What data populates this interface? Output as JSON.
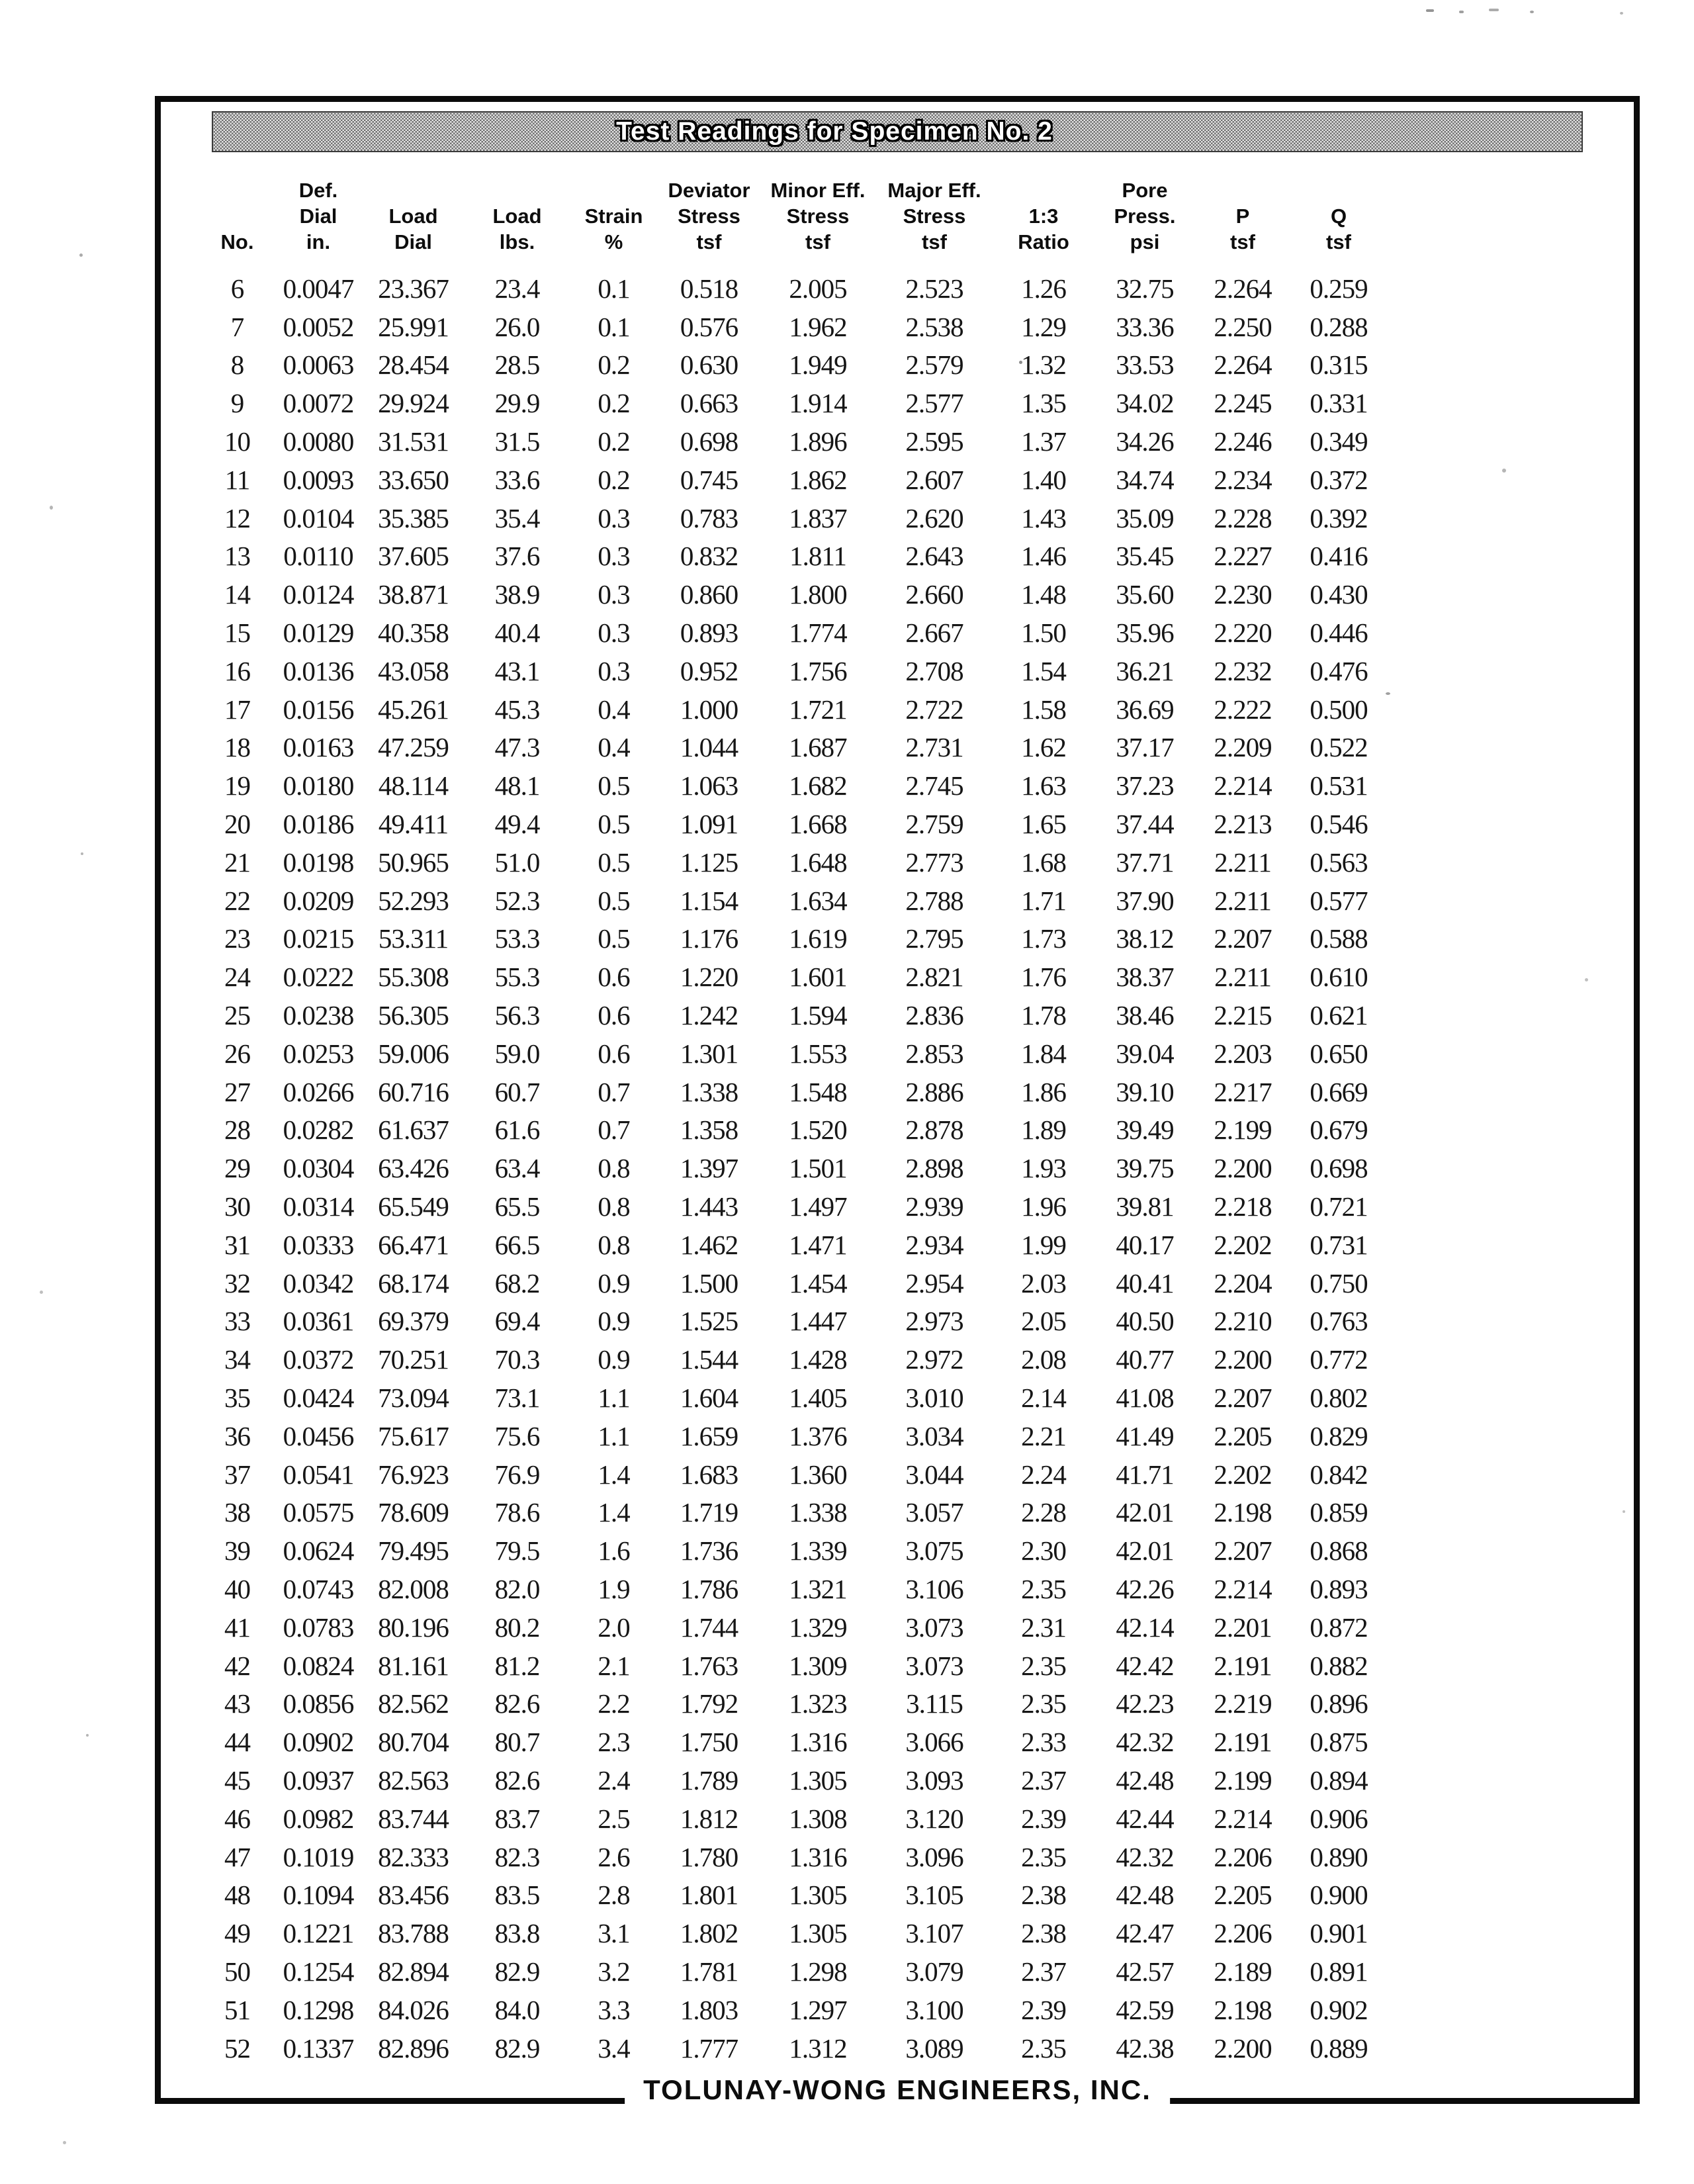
{
  "page": {
    "title": "Test Readings for Specimen No. 2",
    "footer": "TOLUNAY-WONG ENGINEERS, INC."
  },
  "colors": {
    "ink": "#141414",
    "frame_border": "#0b0b0b",
    "title_band_dark": "#6f6f6f",
    "title_band_light": "#e4e4e4",
    "title_text": "#ffffff"
  },
  "table": {
    "columns": [
      [
        "",
        "",
        "No."
      ],
      [
        "Def.",
        "Dial",
        "in."
      ],
      [
        "",
        "Load",
        "Dial"
      ],
      [
        "",
        "Load",
        "lbs."
      ],
      [
        "",
        "Strain",
        "%"
      ],
      [
        "Deviator",
        "Stress",
        "tsf"
      ],
      [
        "Minor Eff.",
        "Stress",
        "tsf"
      ],
      [
        "Major Eff.",
        "Stress",
        "tsf"
      ],
      [
        "",
        "1:3",
        "Ratio"
      ],
      [
        "Pore",
        "Press.",
        "psi"
      ],
      [
        "",
        "P",
        "tsf"
      ],
      [
        "",
        "Q",
        "tsf"
      ]
    ],
    "rows": [
      [
        "6",
        "0.0047",
        "23.367",
        "23.4",
        "0.1",
        "0.518",
        "2.005",
        "2.523",
        "1.26",
        "32.75",
        "2.264",
        "0.259"
      ],
      [
        "7",
        "0.0052",
        "25.991",
        "26.0",
        "0.1",
        "0.576",
        "1.962",
        "2.538",
        "1.29",
        "33.36",
        "2.250",
        "0.288"
      ],
      [
        "8",
        "0.0063",
        "28.454",
        "28.5",
        "0.2",
        "0.630",
        "1.949",
        "2.579",
        "1.32",
        "33.53",
        "2.264",
        "0.315"
      ],
      [
        "9",
        "0.0072",
        "29.924",
        "29.9",
        "0.2",
        "0.663",
        "1.914",
        "2.577",
        "1.35",
        "34.02",
        "2.245",
        "0.331"
      ],
      [
        "10",
        "0.0080",
        "31.531",
        "31.5",
        "0.2",
        "0.698",
        "1.896",
        "2.595",
        "1.37",
        "34.26",
        "2.246",
        "0.349"
      ],
      [
        "11",
        "0.0093",
        "33.650",
        "33.6",
        "0.2",
        "0.745",
        "1.862",
        "2.607",
        "1.40",
        "34.74",
        "2.234",
        "0.372"
      ],
      [
        "12",
        "0.0104",
        "35.385",
        "35.4",
        "0.3",
        "0.783",
        "1.837",
        "2.620",
        "1.43",
        "35.09",
        "2.228",
        "0.392"
      ],
      [
        "13",
        "0.0110",
        "37.605",
        "37.6",
        "0.3",
        "0.832",
        "1.811",
        "2.643",
        "1.46",
        "35.45",
        "2.227",
        "0.416"
      ],
      [
        "14",
        "0.0124",
        "38.871",
        "38.9",
        "0.3",
        "0.860",
        "1.800",
        "2.660",
        "1.48",
        "35.60",
        "2.230",
        "0.430"
      ],
      [
        "15",
        "0.0129",
        "40.358",
        "40.4",
        "0.3",
        "0.893",
        "1.774",
        "2.667",
        "1.50",
        "35.96",
        "2.220",
        "0.446"
      ],
      [
        "16",
        "0.0136",
        "43.058",
        "43.1",
        "0.3",
        "0.952",
        "1.756",
        "2.708",
        "1.54",
        "36.21",
        "2.232",
        "0.476"
      ],
      [
        "17",
        "0.0156",
        "45.261",
        "45.3",
        "0.4",
        "1.000",
        "1.721",
        "2.722",
        "1.58",
        "36.69",
        "2.222",
        "0.500"
      ],
      [
        "18",
        "0.0163",
        "47.259",
        "47.3",
        "0.4",
        "1.044",
        "1.687",
        "2.731",
        "1.62",
        "37.17",
        "2.209",
        "0.522"
      ],
      [
        "19",
        "0.0180",
        "48.114",
        "48.1",
        "0.5",
        "1.063",
        "1.682",
        "2.745",
        "1.63",
        "37.23",
        "2.214",
        "0.531"
      ],
      [
        "20",
        "0.0186",
        "49.411",
        "49.4",
        "0.5",
        "1.091",
        "1.668",
        "2.759",
        "1.65",
        "37.44",
        "2.213",
        "0.546"
      ],
      [
        "21",
        "0.0198",
        "50.965",
        "51.0",
        "0.5",
        "1.125",
        "1.648",
        "2.773",
        "1.68",
        "37.71",
        "2.211",
        "0.563"
      ],
      [
        "22",
        "0.0209",
        "52.293",
        "52.3",
        "0.5",
        "1.154",
        "1.634",
        "2.788",
        "1.71",
        "37.90",
        "2.211",
        "0.577"
      ],
      [
        "23",
        "0.0215",
        "53.311",
        "53.3",
        "0.5",
        "1.176",
        "1.619",
        "2.795",
        "1.73",
        "38.12",
        "2.207",
        "0.588"
      ],
      [
        "24",
        "0.0222",
        "55.308",
        "55.3",
        "0.6",
        "1.220",
        "1.601",
        "2.821",
        "1.76",
        "38.37",
        "2.211",
        "0.610"
      ],
      [
        "25",
        "0.0238",
        "56.305",
        "56.3",
        "0.6",
        "1.242",
        "1.594",
        "2.836",
        "1.78",
        "38.46",
        "2.215",
        "0.621"
      ],
      [
        "26",
        "0.0253",
        "59.006",
        "59.0",
        "0.6",
        "1.301",
        "1.553",
        "2.853",
        "1.84",
        "39.04",
        "2.203",
        "0.650"
      ],
      [
        "27",
        "0.0266",
        "60.716",
        "60.7",
        "0.7",
        "1.338",
        "1.548",
        "2.886",
        "1.86",
        "39.10",
        "2.217",
        "0.669"
      ],
      [
        "28",
        "0.0282",
        "61.637",
        "61.6",
        "0.7",
        "1.358",
        "1.520",
        "2.878",
        "1.89",
        "39.49",
        "2.199",
        "0.679"
      ],
      [
        "29",
        "0.0304",
        "63.426",
        "63.4",
        "0.8",
        "1.397",
        "1.501",
        "2.898",
        "1.93",
        "39.75",
        "2.200",
        "0.698"
      ],
      [
        "30",
        "0.0314",
        "65.549",
        "65.5",
        "0.8",
        "1.443",
        "1.497",
        "2.939",
        "1.96",
        "39.81",
        "2.218",
        "0.721"
      ],
      [
        "31",
        "0.0333",
        "66.471",
        "66.5",
        "0.8",
        "1.462",
        "1.471",
        "2.934",
        "1.99",
        "40.17",
        "2.202",
        "0.731"
      ],
      [
        "32",
        "0.0342",
        "68.174",
        "68.2",
        "0.9",
        "1.500",
        "1.454",
        "2.954",
        "2.03",
        "40.41",
        "2.204",
        "0.750"
      ],
      [
        "33",
        "0.0361",
        "69.379",
        "69.4",
        "0.9",
        "1.525",
        "1.447",
        "2.973",
        "2.05",
        "40.50",
        "2.210",
        "0.763"
      ],
      [
        "34",
        "0.0372",
        "70.251",
        "70.3",
        "0.9",
        "1.544",
        "1.428",
        "2.972",
        "2.08",
        "40.77",
        "2.200",
        "0.772"
      ],
      [
        "35",
        "0.0424",
        "73.094",
        "73.1",
        "1.1",
        "1.604",
        "1.405",
        "3.010",
        "2.14",
        "41.08",
        "2.207",
        "0.802"
      ],
      [
        "36",
        "0.0456",
        "75.617",
        "75.6",
        "1.1",
        "1.659",
        "1.376",
        "3.034",
        "2.21",
        "41.49",
        "2.205",
        "0.829"
      ],
      [
        "37",
        "0.0541",
        "76.923",
        "76.9",
        "1.4",
        "1.683",
        "1.360",
        "3.044",
        "2.24",
        "41.71",
        "2.202",
        "0.842"
      ],
      [
        "38",
        "0.0575",
        "78.609",
        "78.6",
        "1.4",
        "1.719",
        "1.338",
        "3.057",
        "2.28",
        "42.01",
        "2.198",
        "0.859"
      ],
      [
        "39",
        "0.0624",
        "79.495",
        "79.5",
        "1.6",
        "1.736",
        "1.339",
        "3.075",
        "2.30",
        "42.01",
        "2.207",
        "0.868"
      ],
      [
        "40",
        "0.0743",
        "82.008",
        "82.0",
        "1.9",
        "1.786",
        "1.321",
        "3.106",
        "2.35",
        "42.26",
        "2.214",
        "0.893"
      ],
      [
        "41",
        "0.0783",
        "80.196",
        "80.2",
        "2.0",
        "1.744",
        "1.329",
        "3.073",
        "2.31",
        "42.14",
        "2.201",
        "0.872"
      ],
      [
        "42",
        "0.0824",
        "81.161",
        "81.2",
        "2.1",
        "1.763",
        "1.309",
        "3.073",
        "2.35",
        "42.42",
        "2.191",
        "0.882"
      ],
      [
        "43",
        "0.0856",
        "82.562",
        "82.6",
        "2.2",
        "1.792",
        "1.323",
        "3.115",
        "2.35",
        "42.23",
        "2.219",
        "0.896"
      ],
      [
        "44",
        "0.0902",
        "80.704",
        "80.7",
        "2.3",
        "1.750",
        "1.316",
        "3.066",
        "2.33",
        "42.32",
        "2.191",
        "0.875"
      ],
      [
        "45",
        "0.0937",
        "82.563",
        "82.6",
        "2.4",
        "1.789",
        "1.305",
        "3.093",
        "2.37",
        "42.48",
        "2.199",
        "0.894"
      ],
      [
        "46",
        "0.0982",
        "83.744",
        "83.7",
        "2.5",
        "1.812",
        "1.308",
        "3.120",
        "2.39",
        "42.44",
        "2.214",
        "0.906"
      ],
      [
        "47",
        "0.1019",
        "82.333",
        "82.3",
        "2.6",
        "1.780",
        "1.316",
        "3.096",
        "2.35",
        "42.32",
        "2.206",
        "0.890"
      ],
      [
        "48",
        "0.1094",
        "83.456",
        "83.5",
        "2.8",
        "1.801",
        "1.305",
        "3.105",
        "2.38",
        "42.48",
        "2.205",
        "0.900"
      ],
      [
        "49",
        "0.1221",
        "83.788",
        "83.8",
        "3.1",
        "1.802",
        "1.305",
        "3.107",
        "2.38",
        "42.47",
        "2.206",
        "0.901"
      ],
      [
        "50",
        "0.1254",
        "82.894",
        "82.9",
        "3.2",
        "1.781",
        "1.298",
        "3.079",
        "2.37",
        "42.57",
        "2.189",
        "0.891"
      ],
      [
        "51",
        "0.1298",
        "84.026",
        "84.0",
        "3.3",
        "1.803",
        "1.297",
        "3.100",
        "2.39",
        "42.59",
        "2.198",
        "0.902"
      ],
      [
        "52",
        "0.1337",
        "82.896",
        "82.9",
        "3.4",
        "1.777",
        "1.312",
        "3.089",
        "2.35",
        "42.38",
        "2.200",
        "0.889"
      ]
    ]
  }
}
